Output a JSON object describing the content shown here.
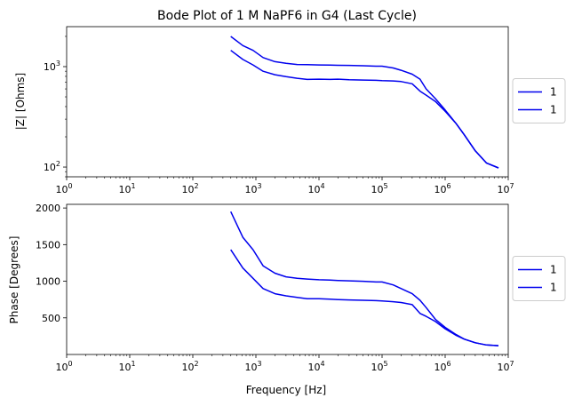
{
  "chart_data": [
    {
      "type": "line",
      "title": "Bode Plot of 1 M NaPF6 in G4 (Last Cycle)",
      "xlabel": "",
      "ylabel": "|Z| [Ohms]",
      "xscale": "log",
      "yscale": "log",
      "xlim": [
        1,
        10000000
      ],
      "ylim": [
        80,
        2500
      ],
      "xticks": [
        {
          "base": "10",
          "exp": "0"
        },
        {
          "base": "10",
          "exp": "1"
        },
        {
          "base": "10",
          "exp": "2"
        },
        {
          "base": "10",
          "exp": "3"
        },
        {
          "base": "10",
          "exp": "4"
        },
        {
          "base": "10",
          "exp": "5"
        },
        {
          "base": "10",
          "exp": "6"
        },
        {
          "base": "10",
          "exp": "7"
        }
      ],
      "yticks": [
        {
          "base": "10",
          "exp": "2"
        },
        {
          "base": "10",
          "exp": "3"
        }
      ],
      "legend_position": "right-outside",
      "series": [
        {
          "name": "1",
          "color": "#0000ee",
          "x": [
            400,
            620,
            900,
            1300,
            2000,
            3000,
            4500,
            6500,
            10000,
            15000,
            20000,
            30000,
            50000,
            80000,
            100000,
            150000,
            200000,
            300000,
            400000,
            500000,
            700000,
            1000000,
            1500000,
            2000000,
            3000000,
            4500000,
            7000000
          ],
          "y": [
            2000,
            1620,
            1450,
            1230,
            1120,
            1080,
            1050,
            1045,
            1040,
            1035,
            1030,
            1028,
            1020,
            1010,
            1010,
            970,
            920,
            840,
            750,
            600,
            480,
            370,
            270,
            210,
            145,
            110,
            98
          ]
        },
        {
          "name": "1",
          "color": "#0000ee",
          "x": [
            400,
            620,
            900,
            1300,
            2000,
            3000,
            4500,
            6500,
            10000,
            15000,
            20000,
            30000,
            50000,
            80000,
            100000,
            150000,
            200000,
            300000,
            400000,
            500000,
            700000,
            1000000,
            1500000,
            2000000,
            3000000,
            4500000,
            7000000
          ],
          "y": [
            1450,
            1180,
            1040,
            900,
            830,
            795,
            765,
            745,
            750,
            745,
            750,
            740,
            735,
            730,
            725,
            720,
            710,
            675,
            570,
            520,
            450,
            360,
            270,
            210,
            145,
            110,
            98
          ]
        }
      ]
    },
    {
      "type": "line",
      "title": "",
      "xlabel": "Frequency [Hz]",
      "ylabel": "Phase [Degrees]",
      "xscale": "log",
      "yscale": "linear",
      "xlim": [
        1,
        10000000
      ],
      "ylim": [
        0,
        2050
      ],
      "xticks": [
        {
          "base": "10",
          "exp": "0"
        },
        {
          "base": "10",
          "exp": "1"
        },
        {
          "base": "10",
          "exp": "2"
        },
        {
          "base": "10",
          "exp": "3"
        },
        {
          "base": "10",
          "exp": "4"
        },
        {
          "base": "10",
          "exp": "5"
        },
        {
          "base": "10",
          "exp": "6"
        },
        {
          "base": "10",
          "exp": "7"
        }
      ],
      "yticks": [
        500,
        1000,
        1500,
        2000
      ],
      "legend_position": "right-outside",
      "series": [
        {
          "name": "1",
          "color": "#0000ee",
          "x": [
            400,
            620,
            900,
            1300,
            2000,
            3000,
            4500,
            6500,
            10000,
            15000,
            20000,
            30000,
            50000,
            80000,
            100000,
            150000,
            200000,
            300000,
            400000,
            500000,
            700000,
            1000000,
            1500000,
            2000000,
            3000000,
            4500000,
            7000000
          ],
          "y": [
            1950,
            1600,
            1430,
            1210,
            1110,
            1060,
            1040,
            1030,
            1020,
            1015,
            1010,
            1005,
            1000,
            990,
            990,
            950,
            900,
            830,
            740,
            640,
            480,
            370,
            270,
            210,
            160,
            130,
            120
          ]
        },
        {
          "name": "1",
          "color": "#0000ee",
          "x": [
            400,
            620,
            900,
            1300,
            2000,
            3000,
            4500,
            6500,
            10000,
            15000,
            20000,
            30000,
            50000,
            80000,
            100000,
            150000,
            200000,
            300000,
            400000,
            500000,
            700000,
            1000000,
            1500000,
            2000000,
            3000000,
            4500000,
            7000000
          ],
          "y": [
            1430,
            1180,
            1040,
            900,
            830,
            800,
            780,
            760,
            760,
            755,
            750,
            745,
            740,
            735,
            730,
            720,
            710,
            680,
            560,
            520,
            450,
            350,
            260,
            210,
            160,
            130,
            120
          ]
        }
      ]
    }
  ]
}
